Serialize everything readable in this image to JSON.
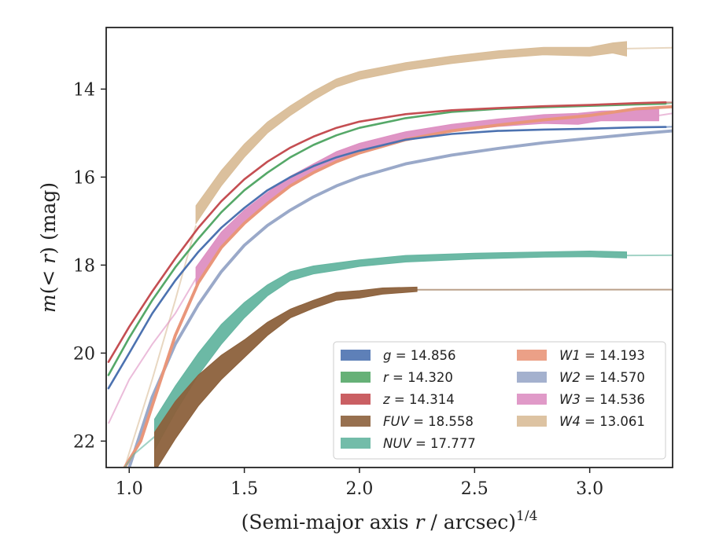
{
  "chart_data": {
    "type": "line",
    "title": "",
    "xlabel": "(Semi-major axis r / arcsec)^1/4",
    "xlabel_parts": {
      "main": "(Semi-major axis ",
      "var": "r",
      "rest": " / arcsec)",
      "sup": "1/4"
    },
    "ylabel": "m(< r) (mag)",
    "ylabel_parts": {
      "var1": "m",
      "mid": "(< ",
      "var2": "r",
      "end": ") (mag)"
    },
    "xlim": [
      0.9,
      3.36
    ],
    "ylim": [
      22.6,
      12.6
    ],
    "y_inverted": true,
    "xticks": [
      "1.0",
      "1.5",
      "2.0",
      "2.5",
      "3.0"
    ],
    "xtick_values": [
      1.0,
      1.5,
      2.0,
      2.5,
      3.0
    ],
    "yticks": [
      "14",
      "16",
      "18",
      "20",
      "22"
    ],
    "ytick_values": [
      14,
      16,
      18,
      20,
      22
    ],
    "grid": false,
    "legend": {
      "position": "lower right",
      "columns": 2
    },
    "series": [
      {
        "name": "g = 14.856",
        "band": "g",
        "total": "14.856",
        "color": "#4c72b0",
        "width": 1.0,
        "points": [
          [
            0.91,
            20.8
          ],
          [
            1.0,
            20.0
          ],
          [
            1.1,
            19.1
          ],
          [
            1.2,
            18.35
          ],
          [
            1.3,
            17.7
          ],
          [
            1.4,
            17.15
          ],
          [
            1.5,
            16.7
          ],
          [
            1.6,
            16.3
          ],
          [
            1.7,
            16.0
          ],
          [
            1.8,
            15.75
          ],
          [
            1.9,
            15.55
          ],
          [
            2.0,
            15.4
          ],
          [
            2.2,
            15.15
          ],
          [
            2.4,
            15.02
          ],
          [
            2.6,
            14.95
          ],
          [
            2.8,
            14.92
          ],
          [
            3.0,
            14.9
          ],
          [
            3.2,
            14.87
          ],
          [
            3.33,
            14.86
          ]
        ],
        "extension": [
          [
            3.33,
            14.86
          ],
          [
            3.36,
            14.855
          ]
        ]
      },
      {
        "name": "r = 14.320",
        "band": "r",
        "total": "14.320",
        "color": "#55a868",
        "width": 1.0,
        "points": [
          [
            0.91,
            20.5
          ],
          [
            1.0,
            19.65
          ],
          [
            1.1,
            18.8
          ],
          [
            1.2,
            18.05
          ],
          [
            1.3,
            17.4
          ],
          [
            1.4,
            16.8
          ],
          [
            1.5,
            16.3
          ],
          [
            1.6,
            15.9
          ],
          [
            1.7,
            15.55
          ],
          [
            1.8,
            15.27
          ],
          [
            1.9,
            15.05
          ],
          [
            2.0,
            14.88
          ],
          [
            2.2,
            14.66
          ],
          [
            2.4,
            14.52
          ],
          [
            2.6,
            14.45
          ],
          [
            2.8,
            14.41
          ],
          [
            3.0,
            14.38
          ],
          [
            3.2,
            14.35
          ],
          [
            3.33,
            14.33
          ]
        ],
        "extension": [
          [
            3.33,
            14.33
          ],
          [
            3.36,
            14.32
          ]
        ]
      },
      {
        "name": "z = 14.314",
        "band": "z",
        "total": "14.314",
        "color": "#c44e52",
        "width": 1.0,
        "points": [
          [
            0.91,
            20.2
          ],
          [
            1.0,
            19.4
          ],
          [
            1.1,
            18.6
          ],
          [
            1.2,
            17.85
          ],
          [
            1.3,
            17.15
          ],
          [
            1.4,
            16.55
          ],
          [
            1.5,
            16.05
          ],
          [
            1.6,
            15.65
          ],
          [
            1.7,
            15.33
          ],
          [
            1.8,
            15.08
          ],
          [
            1.9,
            14.88
          ],
          [
            2.0,
            14.74
          ],
          [
            2.2,
            14.57
          ],
          [
            2.4,
            14.48
          ],
          [
            2.6,
            14.43
          ],
          [
            2.8,
            14.39
          ],
          [
            3.0,
            14.36
          ],
          [
            3.2,
            14.32
          ],
          [
            3.33,
            14.3
          ]
        ],
        "extension": [
          [
            3.33,
            14.3
          ],
          [
            3.36,
            14.3
          ]
        ]
      },
      {
        "name": "FUV = 18.558",
        "band": "FUV",
        "total": "18.558",
        "color": "#8c613c",
        "width": 6.0,
        "band_edges": [
          [
            1.11,
            22.7,
            21.8
          ],
          [
            1.2,
            21.95,
            21.1
          ],
          [
            1.3,
            21.2,
            20.5
          ],
          [
            1.4,
            20.6,
            20.05
          ],
          [
            1.5,
            20.1,
            19.7
          ],
          [
            1.6,
            19.6,
            19.3
          ],
          [
            1.7,
            19.2,
            19.0
          ],
          [
            1.8,
            18.98,
            18.8
          ],
          [
            1.9,
            18.8,
            18.62
          ],
          [
            2.0,
            18.75,
            18.58
          ],
          [
            2.1,
            18.66,
            18.52
          ],
          [
            2.25,
            18.6,
            18.5
          ]
        ],
        "extension": [
          [
            2.25,
            18.56
          ],
          [
            2.6,
            18.56
          ],
          [
            3.0,
            18.558
          ],
          [
            3.36,
            18.558
          ]
        ]
      },
      {
        "name": "NUV = 17.777",
        "band": "NUV",
        "total": "17.777",
        "color": "#64b5a0",
        "width": 5.0,
        "band_edges": [
          [
            1.11,
            22.2,
            21.5
          ],
          [
            1.2,
            21.35,
            20.75
          ],
          [
            1.3,
            20.5,
            20.0
          ],
          [
            1.4,
            19.8,
            19.35
          ],
          [
            1.5,
            19.2,
            18.85
          ],
          [
            1.6,
            18.7,
            18.45
          ],
          [
            1.7,
            18.35,
            18.15
          ],
          [
            1.8,
            18.2,
            18.02
          ],
          [
            1.9,
            18.12,
            17.95
          ],
          [
            2.0,
            18.03,
            17.88
          ],
          [
            2.2,
            17.93,
            17.78
          ],
          [
            2.5,
            17.86,
            17.73
          ],
          [
            2.8,
            17.82,
            17.7
          ],
          [
            3.0,
            17.81,
            17.68
          ],
          [
            3.16,
            17.84,
            17.7
          ]
        ],
        "extension": [
          [
            0.98,
            22.6
          ],
          [
            1.02,
            22.3
          ],
          [
            1.11,
            21.9
          ]
        ],
        "extension_right": [
          [
            3.16,
            17.78
          ],
          [
            3.36,
            17.777
          ]
        ]
      },
      {
        "name": "W1 = 14.193",
        "band": "W1",
        "total": "14.193",
        "color": "#e9967a",
        "width": 1.5,
        "points": [
          [
            0.98,
            22.6
          ],
          [
            1.05,
            22.0
          ],
          [
            1.1,
            21.2
          ],
          [
            1.2,
            19.6
          ],
          [
            1.3,
            18.4
          ],
          [
            1.4,
            17.6
          ],
          [
            1.5,
            17.05
          ],
          [
            1.6,
            16.6
          ],
          [
            1.7,
            16.2
          ],
          [
            1.8,
            15.9
          ],
          [
            1.9,
            15.65
          ],
          [
            2.0,
            15.45
          ],
          [
            2.2,
            15.15
          ],
          [
            2.4,
            14.95
          ],
          [
            2.6,
            14.82
          ],
          [
            2.8,
            14.7
          ],
          [
            3.0,
            14.6
          ],
          [
            3.2,
            14.45
          ],
          [
            3.36,
            14.4
          ]
        ]
      },
      {
        "name": "W2 = 14.570",
        "band": "W2",
        "total": "14.570",
        "color": "#9aa9c9",
        "width": 1.5,
        "points": [
          [
            1.0,
            22.6
          ],
          [
            1.1,
            21.0
          ],
          [
            1.2,
            19.8
          ],
          [
            1.3,
            18.9
          ],
          [
            1.4,
            18.15
          ],
          [
            1.5,
            17.55
          ],
          [
            1.6,
            17.1
          ],
          [
            1.7,
            16.75
          ],
          [
            1.8,
            16.45
          ],
          [
            1.9,
            16.2
          ],
          [
            2.0,
            16.0
          ],
          [
            2.2,
            15.7
          ],
          [
            2.4,
            15.5
          ],
          [
            2.6,
            15.35
          ],
          [
            2.8,
            15.22
          ],
          [
            3.0,
            15.12
          ],
          [
            3.2,
            15.02
          ],
          [
            3.36,
            14.95
          ]
        ]
      },
      {
        "name": "W3 = 14.536",
        "band": "W3",
        "total": "14.536",
        "color": "#dd8fc2",
        "width": 6.0,
        "band_edges": [
          [
            1.29,
            18.5,
            18.05
          ],
          [
            1.4,
            17.6,
            17.25
          ],
          [
            1.5,
            17.05,
            16.75
          ],
          [
            1.6,
            16.6,
            16.35
          ],
          [
            1.7,
            16.2,
            15.98
          ],
          [
            1.8,
            15.9,
            15.7
          ],
          [
            1.9,
            15.62,
            15.42
          ],
          [
            2.0,
            15.42,
            15.23
          ],
          [
            2.2,
            15.15,
            14.97
          ],
          [
            2.4,
            14.97,
            14.8
          ],
          [
            2.6,
            14.85,
            14.68
          ],
          [
            2.8,
            14.78,
            14.58
          ],
          [
            2.95,
            14.8,
            14.55
          ],
          [
            3.05,
            14.72,
            14.5
          ],
          [
            3.2,
            14.72,
            14.48
          ],
          [
            3.3,
            14.72,
            14.46
          ]
        ],
        "extension": [
          [
            0.91,
            21.6
          ],
          [
            1.0,
            20.6
          ],
          [
            1.1,
            19.8
          ],
          [
            1.2,
            19.1
          ],
          [
            1.29,
            18.3
          ]
        ],
        "extension_right": [
          [
            3.3,
            14.6
          ],
          [
            3.36,
            14.55
          ]
        ]
      },
      {
        "name": "W4 = 13.061",
        "band": "W4",
        "total": "13.061",
        "color": "#d9bd98",
        "width": 6.0,
        "band_edges": [
          [
            1.29,
            17.05,
            16.65
          ],
          [
            1.4,
            16.2,
            15.85
          ],
          [
            1.5,
            15.55,
            15.25
          ],
          [
            1.6,
            15.0,
            14.75
          ],
          [
            1.7,
            14.6,
            14.38
          ],
          [
            1.8,
            14.25,
            14.05
          ],
          [
            1.9,
            13.95,
            13.77
          ],
          [
            2.0,
            13.78,
            13.6
          ],
          [
            2.2,
            13.57,
            13.4
          ],
          [
            2.4,
            13.42,
            13.25
          ],
          [
            2.6,
            13.3,
            13.13
          ],
          [
            2.8,
            13.22,
            13.05
          ],
          [
            3.0,
            13.25,
            13.05
          ],
          [
            3.1,
            13.18,
            12.95
          ],
          [
            3.16,
            13.25,
            12.92
          ]
        ],
        "extension": [
          [
            0.98,
            22.6
          ],
          [
            1.1,
            20.6
          ],
          [
            1.2,
            18.8
          ],
          [
            1.29,
            17.1
          ]
        ],
        "extension_right": [
          [
            3.16,
            13.08
          ],
          [
            3.36,
            13.061
          ]
        ]
      }
    ],
    "legend_entries": [
      {
        "var": "g",
        "value": "= 14.856",
        "color": "#4c72b0"
      },
      {
        "var": "r",
        "value": "= 14.320",
        "color": "#55a868"
      },
      {
        "var": "z",
        "value": "= 14.314",
        "color": "#c44e52"
      },
      {
        "var": "FUV",
        "value": "= 18.558",
        "color": "#8c613c"
      },
      {
        "var": "NUV",
        "value": "= 17.777",
        "color": "#64b5a0"
      },
      {
        "var": "W1",
        "value": "= 14.193",
        "color": "#e9967a"
      },
      {
        "var": "W2",
        "value": "= 14.570",
        "color": "#9aa9c9"
      },
      {
        "var": "W3",
        "value": "= 14.536",
        "color": "#dd8fc2"
      },
      {
        "var": "W4",
        "value": "= 13.061",
        "color": "#d9bd98"
      }
    ]
  }
}
